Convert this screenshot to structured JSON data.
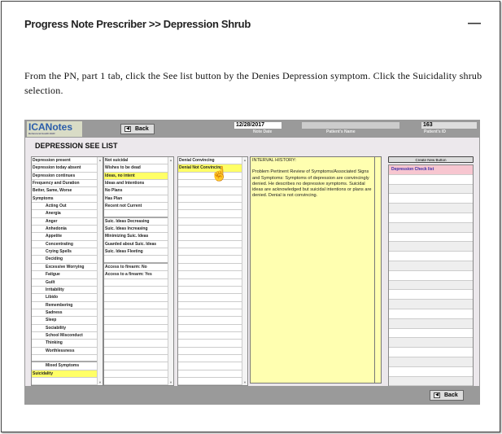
{
  "header": {
    "title": "Progress Note Prescriber >> Depression Shrub",
    "minimize": "—"
  },
  "instructions": "From the PN, part 1 tab, click the See list button by the Denies Depression symptom. Click the Suicidality shrub selection.",
  "app": {
    "logo": "ICANotes",
    "logo_sub": "Behavioral Health EHR",
    "back_label": "Back",
    "note_date": "12/28/2017",
    "note_date_label": "Note Date",
    "patient_name": "",
    "patient_name_label": "Patient's Name",
    "patient_id": "163",
    "patient_id_label": "Patient's ID",
    "heading": "DEPRESSION SEE  LIST",
    "col1": [
      {
        "t": "Depression present"
      },
      {
        "t": "Depression today absent"
      },
      {
        "t": "Depression continues"
      },
      {
        "t": "Frequency and Duration"
      },
      {
        "t": "Better, Same, Worse"
      },
      {
        "t": "Symptoms"
      },
      {
        "t": "Acting Out",
        "i": 1
      },
      {
        "t": "Anergia",
        "i": 1
      },
      {
        "t": "Anger",
        "i": 1
      },
      {
        "t": "Anhedonia",
        "i": 1
      },
      {
        "t": "Appetite",
        "i": 1
      },
      {
        "t": "Concentrating",
        "i": 1
      },
      {
        "t": "Crying Spells",
        "i": 1
      },
      {
        "t": "Deciding",
        "i": 1
      },
      {
        "t": "Excessive Worrying",
        "i": 1
      },
      {
        "t": "Fatigue",
        "i": 1
      },
      {
        "t": "Guilt",
        "i": 1
      },
      {
        "t": "Irritability",
        "i": 1
      },
      {
        "t": "Libido",
        "i": 1
      },
      {
        "t": "Remembering",
        "i": 1
      },
      {
        "t": "Sadness",
        "i": 1
      },
      {
        "t": "Sleep",
        "i": 1
      },
      {
        "t": "Sociability",
        "i": 1
      },
      {
        "t": "School Misconduct",
        "i": 1
      },
      {
        "t": "Thinking",
        "i": 1
      },
      {
        "t": "Worthlessness",
        "i": 1
      },
      {
        "t": "",
        "sep": 1
      },
      {
        "t": "Mixed Symptoms",
        "i": 1
      },
      {
        "t": "Suicidality",
        "sel": 1
      },
      {
        "t": ""
      }
    ],
    "col2": [
      {
        "t": "Not suicidal"
      },
      {
        "t": "Wishes to be dead"
      },
      {
        "t": "Ideas, no intent",
        "sel": 1
      },
      {
        "t": "Ideas and Intentions"
      },
      {
        "t": "No Plans"
      },
      {
        "t": "Has Plan"
      },
      {
        "t": "Recent not Current"
      },
      {
        "t": "",
        "sep": 1
      },
      {
        "t": "Suic. Ideas Decreasing"
      },
      {
        "t": "Suic. Ideas Increasing"
      },
      {
        "t": "Minimizing Suic. Ideas"
      },
      {
        "t": "Guarded about Suic. Ideas"
      },
      {
        "t": "Suic. Ideas Fleeting"
      },
      {
        "t": "",
        "sep": 1
      },
      {
        "t": "Access to firearm: No"
      },
      {
        "t": "Access to a firearm: Yes"
      },
      {
        "t": ""
      },
      {
        "t": ""
      },
      {
        "t": ""
      },
      {
        "t": ""
      },
      {
        "t": ""
      },
      {
        "t": ""
      },
      {
        "t": ""
      },
      {
        "t": ""
      },
      {
        "t": ""
      },
      {
        "t": ""
      },
      {
        "t": ""
      },
      {
        "t": ""
      },
      {
        "t": ""
      },
      {
        "t": ""
      }
    ],
    "col3": [
      {
        "t": "Denial Convincing"
      },
      {
        "t": "Denial Not Convincing",
        "sel": 1
      },
      {
        "t": ""
      },
      {
        "t": ""
      },
      {
        "t": ""
      },
      {
        "t": ""
      },
      {
        "t": ""
      },
      {
        "t": ""
      },
      {
        "t": ""
      },
      {
        "t": ""
      },
      {
        "t": ""
      },
      {
        "t": ""
      },
      {
        "t": ""
      },
      {
        "t": ""
      },
      {
        "t": ""
      },
      {
        "t": ""
      },
      {
        "t": ""
      },
      {
        "t": ""
      },
      {
        "t": ""
      },
      {
        "t": ""
      },
      {
        "t": ""
      },
      {
        "t": ""
      },
      {
        "t": ""
      },
      {
        "t": ""
      },
      {
        "t": ""
      },
      {
        "t": ""
      },
      {
        "t": ""
      },
      {
        "t": ""
      },
      {
        "t": ""
      },
      {
        "t": ""
      }
    ],
    "note": {
      "heading": "INTERVAL HISTORY:",
      "body": "Problem Pertinent Review of Symptoms/Associated Signs and Symptoms:  Symptoms of depression are convincingly denied.  He describes no depressive symptoms.  Suicidal ideas are acknowledged but suicidal intentions or plans are denied. Denial is not convincing."
    },
    "create_button": "Create New  Button",
    "right_list": [
      "Depression Check list",
      "",
      "",
      "",
      "",
      "",
      "",
      "",
      "",
      "",
      "",
      "",
      "",
      "",
      "",
      "",
      "",
      "",
      "",
      "",
      "",
      "",
      ""
    ],
    "colors": {
      "highlight": "#ffff66",
      "note_bg": "#ffffb0",
      "bar": "#9a9a9a",
      "checklist": "#f7c6d0"
    }
  }
}
